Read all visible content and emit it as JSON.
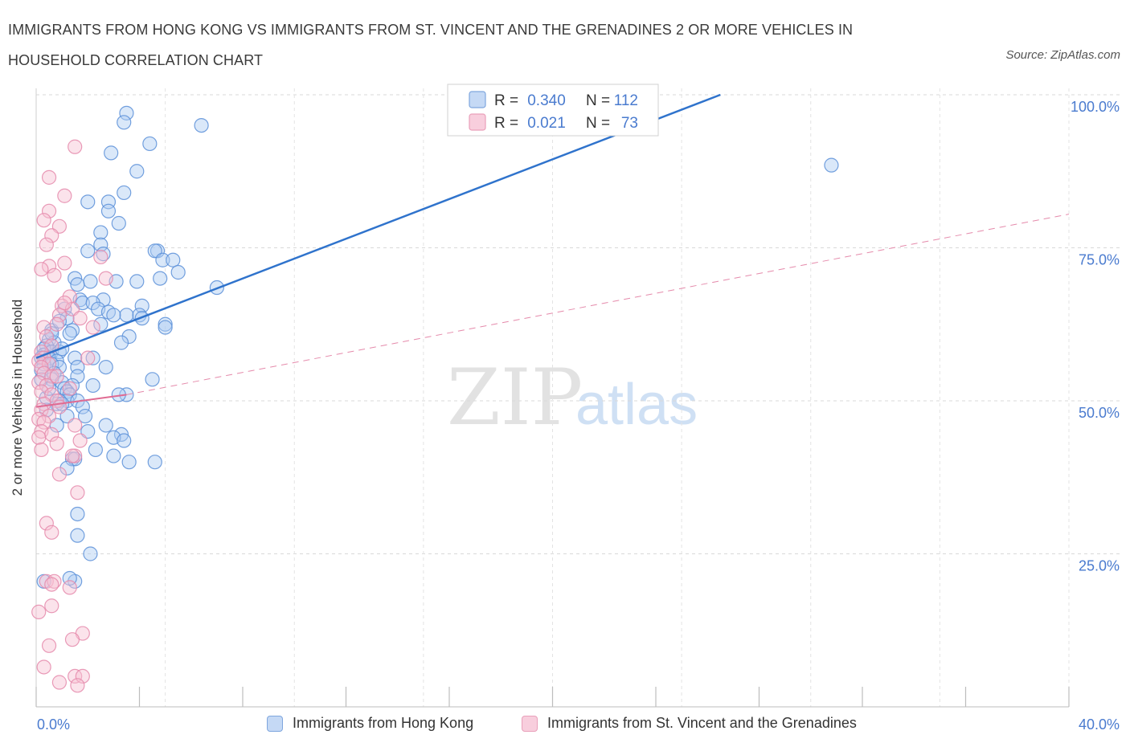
{
  "title": "IMMIGRANTS FROM HONG KONG VS IMMIGRANTS FROM ST. VINCENT AND THE GRENADINES 2 OR MORE VEHICLES IN HOUSEHOLD CORRELATION CHART",
  "source": "Source: ZipAtlas.com",
  "colors": {
    "blue": "#4a86d8",
    "blue_fill": "#aecbf2",
    "pink": "#e77fa3",
    "pink_fill": "#f7c0d3",
    "axis_text": "#4a7bcf"
  },
  "chart_data": {
    "type": "scatter",
    "title": "IMMIGRANTS FROM HONG KONG VS IMMIGRANTS FROM ST. VINCENT AND THE GRENADINES 2 OR MORE VEHICLES IN HOUSEHOLD CORRELATION CHART",
    "xlabel": "",
    "ylabel": "2 or more Vehicles in Household",
    "xlim": [
      0,
      40
    ],
    "ylim": [
      0,
      100
    ],
    "x_tick_labels": [
      "0.0%",
      "40.0%"
    ],
    "y_tick_labels": [
      "25.0%",
      "50.0%",
      "75.0%",
      "100.0%"
    ],
    "y_ticks": [
      25,
      50,
      75,
      100
    ],
    "grid": true,
    "legend_top": [
      {
        "r_label": "R =",
        "r": "0.340",
        "n_label": "N =",
        "n": "112"
      },
      {
        "r_label": "R =",
        "r": "0.021",
        "n_label": "N =",
        "n": "73"
      }
    ],
    "series": [
      {
        "name": "Immigrants from Hong Kong",
        "color": "#4a86d8",
        "trend": {
          "x0": 0,
          "y0": 57.0,
          "x1": 26.5,
          "y1": 100
        },
        "points": [
          [
            3.5,
            97
          ],
          [
            3.4,
            95.5
          ],
          [
            6.4,
            95
          ],
          [
            4.4,
            92
          ],
          [
            2.9,
            90.5
          ],
          [
            3.9,
            87.5
          ],
          [
            30.8,
            88.5
          ],
          [
            3.4,
            84
          ],
          [
            2.0,
            82.5
          ],
          [
            2.8,
            82.5
          ],
          [
            2.8,
            81
          ],
          [
            3.2,
            79
          ],
          [
            2.5,
            77.5
          ],
          [
            2.5,
            75.5
          ],
          [
            2.0,
            74.5
          ],
          [
            4.7,
            74.5
          ],
          [
            4.6,
            74.5
          ],
          [
            2.6,
            74
          ],
          [
            4.9,
            73
          ],
          [
            5.3,
            73
          ],
          [
            5.5,
            71
          ],
          [
            4.8,
            70
          ],
          [
            3.9,
            69.5
          ],
          [
            3.1,
            69.5
          ],
          [
            1.5,
            70
          ],
          [
            2.1,
            69.5
          ],
          [
            1.6,
            69
          ],
          [
            7.0,
            68.5
          ],
          [
            1.7,
            66.5
          ],
          [
            2.6,
            66.5
          ],
          [
            1.8,
            66
          ],
          [
            2.2,
            66
          ],
          [
            4.1,
            65.5
          ],
          [
            2.4,
            65
          ],
          [
            1.1,
            65
          ],
          [
            2.8,
            64.5
          ],
          [
            3.5,
            64
          ],
          [
            3.0,
            64
          ],
          [
            4.0,
            64
          ],
          [
            4.1,
            63.5
          ],
          [
            1.2,
            63.5
          ],
          [
            2.5,
            62.5
          ],
          [
            5.0,
            62.5
          ],
          [
            5.0,
            62
          ],
          [
            1.4,
            61.5
          ],
          [
            0.6,
            61.5
          ],
          [
            1.3,
            61
          ],
          [
            3.6,
            60.5
          ],
          [
            0.5,
            60
          ],
          [
            0.7,
            59.5
          ],
          [
            3.3,
            59.5
          ],
          [
            0.4,
            59
          ],
          [
            0.3,
            58.5
          ],
          [
            0.6,
            58
          ],
          [
            0.9,
            58
          ],
          [
            0.3,
            57.5
          ],
          [
            0.2,
            57
          ],
          [
            0.5,
            57
          ],
          [
            1.5,
            57
          ],
          [
            2.2,
            57
          ],
          [
            0.8,
            56.5
          ],
          [
            0.3,
            56
          ],
          [
            0.6,
            56
          ],
          [
            0.9,
            55.5
          ],
          [
            0.2,
            55
          ],
          [
            1.6,
            55.5
          ],
          [
            2.7,
            55.5
          ],
          [
            0.7,
            54.5
          ],
          [
            1.6,
            54
          ],
          [
            4.5,
            53.5
          ],
          [
            0.6,
            53.5
          ],
          [
            1.0,
            53
          ],
          [
            1.4,
            52.5
          ],
          [
            2.2,
            52.5
          ],
          [
            1.1,
            52
          ],
          [
            1.2,
            51.5
          ],
          [
            3.5,
            51
          ],
          [
            3.2,
            51
          ],
          [
            1.3,
            51
          ],
          [
            1.2,
            50
          ],
          [
            0.9,
            50
          ],
          [
            1.6,
            50
          ],
          [
            0.8,
            49.5
          ],
          [
            1.0,
            49.5
          ],
          [
            1.8,
            49
          ],
          [
            2.0,
            45
          ],
          [
            3.3,
            44.5
          ],
          [
            3.0,
            44
          ],
          [
            3.4,
            43.5
          ],
          [
            2.3,
            42
          ],
          [
            3.6,
            40
          ],
          [
            4.6,
            40
          ],
          [
            3.0,
            41
          ],
          [
            1.4,
            40.5
          ],
          [
            1.5,
            40.5
          ],
          [
            1.2,
            39
          ],
          [
            1.6,
            31.5
          ],
          [
            1.6,
            28
          ],
          [
            2.1,
            25
          ],
          [
            1.5,
            20.5
          ],
          [
            0.3,
            20.5
          ],
          [
            1.3,
            21
          ],
          [
            0.4,
            50.5
          ],
          [
            0.2,
            53.5
          ],
          [
            0.5,
            52
          ],
          [
            0.9,
            63
          ],
          [
            0.4,
            48.5
          ],
          [
            1.9,
            47.5
          ],
          [
            2.7,
            46
          ],
          [
            1.0,
            58.5
          ],
          [
            0.6,
            61
          ],
          [
            1.2,
            47.5
          ],
          [
            0.8,
            46
          ]
        ]
      },
      {
        "name": "Immigrants from St. Vincent and the Grenadines",
        "color": "#e77fa3",
        "trend": {
          "x0": 0,
          "y0": 49.0,
          "x1": 3.5,
          "y1": 51.0
        },
        "trend_dashed": {
          "x0": 3.5,
          "y0": 51.0,
          "x1": 40,
          "y1": 80.5
        },
        "points": [
          [
            1.5,
            91.5
          ],
          [
            0.5,
            86.5
          ],
          [
            1.1,
            83.5
          ],
          [
            0.5,
            81
          ],
          [
            0.3,
            79.5
          ],
          [
            0.9,
            78.5
          ],
          [
            0.6,
            77
          ],
          [
            0.4,
            75.5
          ],
          [
            2.5,
            73.5
          ],
          [
            1.1,
            72.5
          ],
          [
            0.5,
            72
          ],
          [
            0.2,
            71.5
          ],
          [
            0.7,
            70.5
          ],
          [
            2.7,
            70
          ],
          [
            1.3,
            67
          ],
          [
            1.0,
            65.5
          ],
          [
            1.4,
            65
          ],
          [
            0.9,
            64
          ],
          [
            1.7,
            63.5
          ],
          [
            0.8,
            62.5
          ],
          [
            0.3,
            62
          ],
          [
            0.4,
            60.5
          ],
          [
            0.6,
            59
          ],
          [
            0.2,
            58
          ],
          [
            0.3,
            57
          ],
          [
            0.1,
            56.5
          ],
          [
            0.5,
            56
          ],
          [
            0.2,
            55.5
          ],
          [
            0.3,
            54.5
          ],
          [
            0.6,
            54
          ],
          [
            0.1,
            53
          ],
          [
            0.4,
            52.5
          ],
          [
            1.3,
            52
          ],
          [
            0.2,
            51.5
          ],
          [
            0.6,
            51
          ],
          [
            0.8,
            50
          ],
          [
            0.3,
            49.5
          ],
          [
            0.9,
            49
          ],
          [
            0.2,
            48.5
          ],
          [
            0.5,
            47.5
          ],
          [
            0.1,
            47
          ],
          [
            0.3,
            46.5
          ],
          [
            1.5,
            46
          ],
          [
            0.2,
            45
          ],
          [
            0.6,
            44.5
          ],
          [
            0.1,
            44
          ],
          [
            1.7,
            43.5
          ],
          [
            0.8,
            43
          ],
          [
            0.2,
            42
          ],
          [
            1.5,
            41
          ],
          [
            0.9,
            38
          ],
          [
            1.6,
            35
          ],
          [
            0.4,
            30
          ],
          [
            0.6,
            28.5
          ],
          [
            0.4,
            20.5
          ],
          [
            0.7,
            20.5
          ],
          [
            0.6,
            20
          ],
          [
            1.3,
            19.5
          ],
          [
            0.6,
            16.5
          ],
          [
            0.1,
            15.5
          ],
          [
            1.8,
            12
          ],
          [
            1.4,
            11
          ],
          [
            0.5,
            10
          ],
          [
            0.3,
            6.5
          ],
          [
            1.5,
            5
          ],
          [
            1.8,
            5
          ],
          [
            1.6,
            3.5
          ],
          [
            0.9,
            4
          ],
          [
            2.2,
            62
          ],
          [
            1.1,
            66
          ],
          [
            1.4,
            41
          ],
          [
            0.8,
            54
          ],
          [
            2.0,
            57
          ]
        ]
      }
    ]
  },
  "legend_bottom": [
    {
      "label": "Immigrants from Hong Kong"
    },
    {
      "label": "Immigrants from St. Vincent and the Grenadines"
    }
  ],
  "watermark": {
    "zip": "ZIP",
    "atlas": "atlas"
  }
}
